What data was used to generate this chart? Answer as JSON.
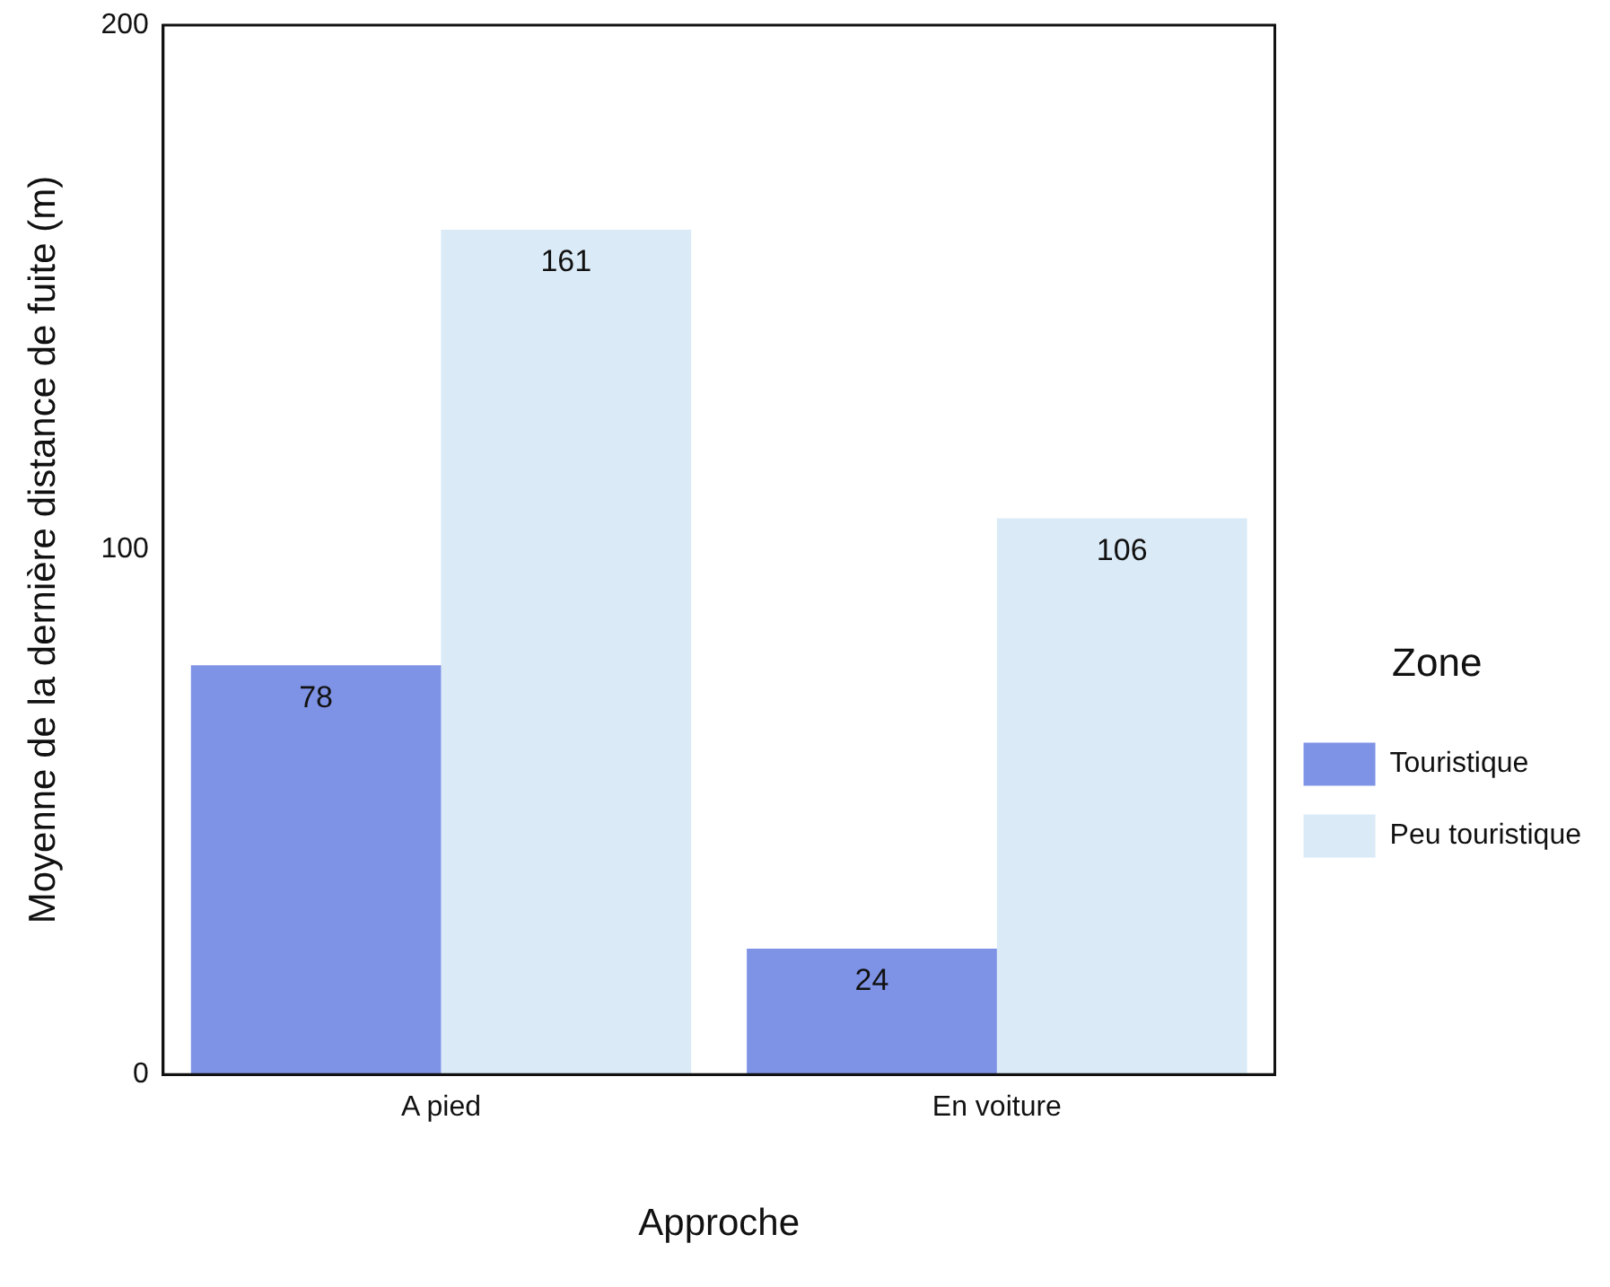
{
  "chart_data": {
    "type": "bar",
    "xlabel": "Approche",
    "ylabel": "Moyenne de la dernière distance de fuite (m)",
    "legend_title": "Zone",
    "categories": [
      "A pied",
      "En voiture"
    ],
    "series": [
      {
        "name": "Touristique",
        "color": "#7f93e6",
        "values": [
          78,
          24
        ]
      },
      {
        "name": "Peu touristique",
        "color": "#daeaf6",
        "values": [
          161,
          106
        ]
      }
    ],
    "ylim": [
      0,
      200
    ],
    "yticks": [
      0,
      100,
      200
    ],
    "grid": false,
    "legend": "right",
    "data_labels": true
  }
}
